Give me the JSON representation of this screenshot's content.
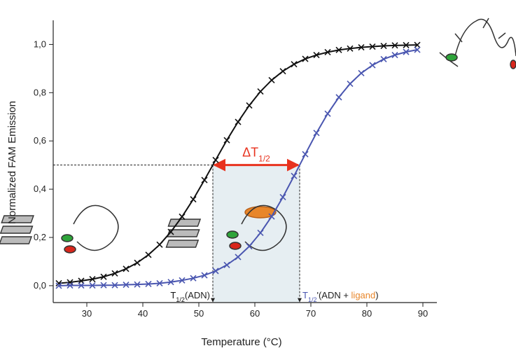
{
  "chart_data": {
    "type": "line",
    "x_label": "Temperature (°C)",
    "y_label": "Normalized FAM Emission",
    "x": [
      25,
      27,
      29,
      31,
      33,
      35,
      37,
      39,
      41,
      43,
      45,
      47,
      49,
      51,
      53,
      55,
      57,
      59,
      61,
      63,
      65,
      67,
      69,
      71,
      73,
      75,
      77,
      79,
      81,
      83,
      85,
      87,
      89
    ],
    "series": [
      {
        "color": "#111111",
        "values": [
          0.01,
          0.014,
          0.02,
          0.027,
          0.037,
          0.051,
          0.07,
          0.095,
          0.128,
          0.17,
          0.223,
          0.286,
          0.358,
          0.438,
          0.521,
          0.603,
          0.679,
          0.747,
          0.805,
          0.852,
          0.889,
          0.918,
          0.94,
          0.956,
          0.968,
          0.977,
          0.983,
          0.988,
          0.991,
          0.994,
          0.996,
          0.997,
          0.998
        ]
      },
      {
        "color": "#4a56b0",
        "values": [
          0.0,
          0.001,
          0.001,
          0.001,
          0.002,
          0.002,
          0.004,
          0.005,
          0.007,
          0.01,
          0.015,
          0.022,
          0.031,
          0.043,
          0.061,
          0.086,
          0.119,
          0.163,
          0.219,
          0.287,
          0.367,
          0.455,
          0.545,
          0.633,
          0.713,
          0.781,
          0.837,
          0.881,
          0.914,
          0.939,
          0.956,
          0.969,
          0.978
        ]
      }
    ],
    "xlim": [
      24,
      92.5
    ],
    "ylim": [
      -0.07,
      1.1
    ],
    "xticks": [
      30,
      40,
      50,
      60,
      70,
      80,
      90
    ],
    "yticks": [
      {
        "value": 0,
        "label": "0,0"
      },
      {
        "value": 0.2,
        "label": "0,2"
      },
      {
        "value": 0.4,
        "label": "0,4"
      },
      {
        "value": 0.6,
        "label": "0,6"
      },
      {
        "value": 0.8,
        "label": "0,8"
      },
      {
        "value": 1,
        "label": "1,0"
      }
    ],
    "half_level": 0.5,
    "delta": {
      "text": "ΔT",
      "sub": "1/2",
      "color": "#e8321e"
    },
    "melting_points": [
      {
        "x": 52.5,
        "label": "T",
        "sub": "1/2",
        "suffix": "(ADN)",
        "color": "#111111"
      },
      {
        "x": 68,
        "label": "T",
        "sub": "1/2",
        "suffix": "'(ADN + ",
        "highlight": "ligand",
        "highlight_color": "#e8862a",
        "end": ")",
        "color": "#4a56b0"
      }
    ],
    "shade_color": "#e6eef2"
  }
}
